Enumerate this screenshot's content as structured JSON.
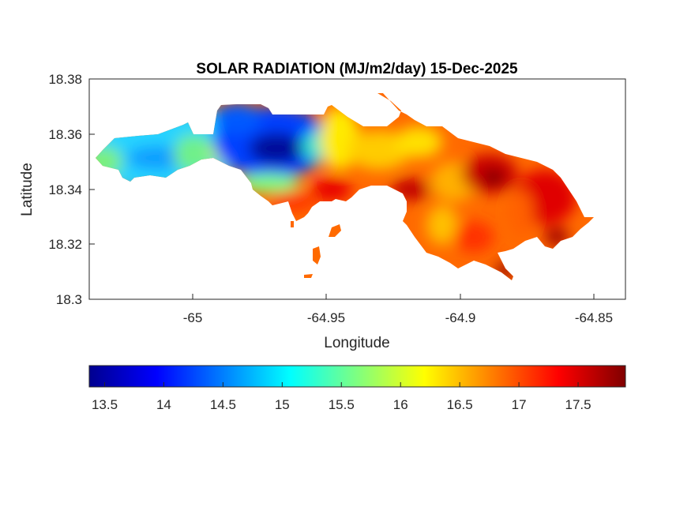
{
  "chart_data": {
    "type": "heatmap",
    "title": "SOLAR RADIATION (MJ/m2/day) 15-Dec-2025",
    "xlabel": "Longitude",
    "ylabel": "Latitude",
    "xlim": [
      -65.039,
      -64.838
    ],
    "ylim": [
      18.3,
      18.38
    ],
    "xticks": [
      "-65",
      "-64.95",
      "-64.9",
      "-64.85"
    ],
    "xtick_values": [
      -65,
      -64.95,
      -64.9,
      -64.85
    ],
    "yticks": [
      "18.38",
      "18.36",
      "18.34",
      "18.32",
      "18.3"
    ],
    "ytick_values": [
      18.38,
      18.36,
      18.34,
      18.32,
      18.3
    ],
    "colormap": "jet",
    "colorbar": {
      "location": "bottom",
      "clim": [
        13.37,
        17.9
      ],
      "ticks": [
        "13.5",
        "14",
        "14.5",
        "15",
        "15.5",
        "16",
        "16.5",
        "17",
        "17.5"
      ],
      "tick_values": [
        13.5,
        14,
        14.5,
        15,
        15.5,
        16,
        16.5,
        17,
        17.5
      ]
    },
    "field_samples": [
      {
        "lon": -65.035,
        "lat": 18.351,
        "value": 15.6
      },
      {
        "lon": -65.015,
        "lat": 18.354,
        "value": 14.9
      },
      {
        "lon": -65.005,
        "lat": 18.357,
        "value": 14.6
      },
      {
        "lon": -64.99,
        "lat": 18.352,
        "value": 15.6
      },
      {
        "lon": -64.978,
        "lat": 18.362,
        "value": 14.0
      },
      {
        "lon": -64.968,
        "lat": 18.355,
        "value": 13.4
      },
      {
        "lon": -64.955,
        "lat": 18.358,
        "value": 14.2
      },
      {
        "lon": -64.945,
        "lat": 18.36,
        "value": 15.6
      },
      {
        "lon": -64.935,
        "lat": 18.355,
        "value": 16.2
      },
      {
        "lon": -64.948,
        "lat": 18.341,
        "value": 17.6
      },
      {
        "lon": -64.965,
        "lat": 18.338,
        "value": 17.0
      },
      {
        "lon": -64.915,
        "lat": 18.355,
        "value": 16.3
      },
      {
        "lon": -64.92,
        "lat": 18.339,
        "value": 17.7
      },
      {
        "lon": -64.905,
        "lat": 18.328,
        "value": 16.2
      },
      {
        "lon": -64.885,
        "lat": 18.344,
        "value": 17.8
      },
      {
        "lon": -64.87,
        "lat": 18.335,
        "value": 17.3
      },
      {
        "lon": -64.855,
        "lat": 18.33,
        "value": 17.1
      },
      {
        "lon": -64.88,
        "lat": 18.311,
        "value": 17.8
      },
      {
        "lon": -64.865,
        "lat": 18.322,
        "value": 17.8
      }
    ]
  }
}
